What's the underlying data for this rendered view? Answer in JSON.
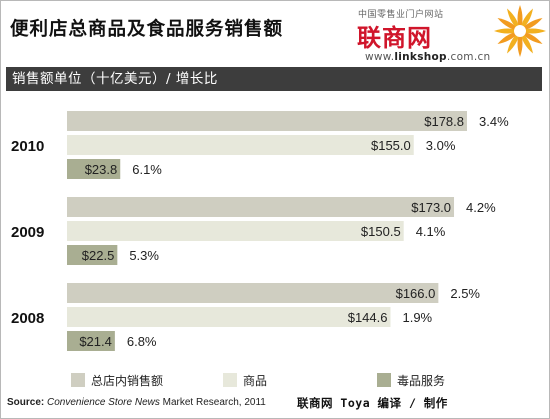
{
  "title": "便利店总商品及食品服务销售额",
  "logo": {
    "site_text": "中国零售业门户网站",
    "name": "联商网",
    "url_prefix": "www.",
    "url_bold": "linkshop",
    "url_suffix": ".com.cn"
  },
  "unit_label": "销售额单位（十亿美元）/ 增长比",
  "chart_data": {
    "type": "bar",
    "orientation": "horizontal",
    "categories": [
      "2010",
      "2009",
      "2008"
    ],
    "series": [
      {
        "name": "总店内销售额",
        "values": [
          178.8,
          173.0,
          166.0
        ],
        "labels": [
          "$178.8",
          "$173.0",
          "$166.0"
        ],
        "growth": [
          "3.4%",
          "4.2%",
          "2.5%"
        ],
        "color": "#cfcec1"
      },
      {
        "name": "商品",
        "values": [
          155.0,
          150.5,
          144.6
        ],
        "labels": [
          "$155.0",
          "$150.5",
          "$144.6"
        ],
        "growth": [
          "3.0%",
          "4.1%",
          "1.9%"
        ],
        "color": "#e7e8db"
      },
      {
        "name": "毒品服务",
        "values": [
          23.8,
          22.5,
          21.4
        ],
        "labels": [
          "$23.8",
          "$22.5",
          "$21.4"
        ],
        "growth": [
          "6.1%",
          "5.3%",
          "6.8%"
        ],
        "color": "#a9ae92"
      }
    ],
    "xlim": [
      0,
      178.8
    ],
    "legend": "bottom"
  },
  "footer": {
    "source_label": "Source:",
    "source_name": "Convenience Store News",
    "source_rest": "Market Research, 2011",
    "credit": "联商网 Toya 编译 / 制作"
  }
}
